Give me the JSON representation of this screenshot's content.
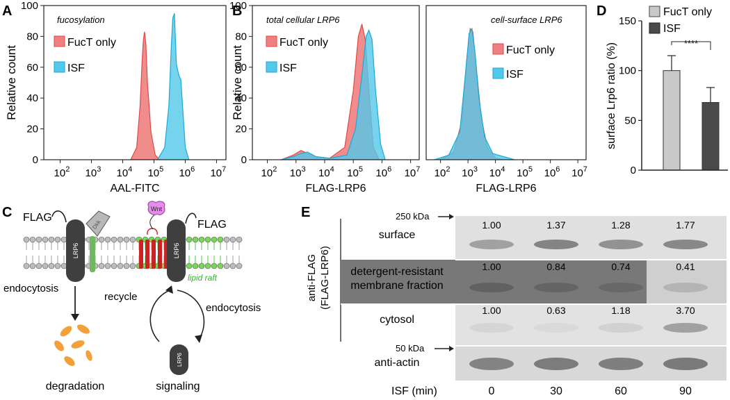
{
  "panel_labels": {
    "A": "A",
    "B": "B",
    "C": "C",
    "D": "D",
    "E": "E"
  },
  "colors": {
    "fuct": "#f08080",
    "fuct_edge": "#e04848",
    "isf": "#52c8ea",
    "isf_edge": "#1aa9d6",
    "overlap": "#4f8cae",
    "bar_fuct": "#c9c9c9",
    "bar_isf": "#4a4a4a",
    "protein": "#3f3f3f",
    "raft": "#2bb82b",
    "raft_head": "#7bd657",
    "red_tm": "#cc2222",
    "wnt": "#e58ee9",
    "degradation": "#f2a13a"
  },
  "panelA": {
    "annotation": "fucosylation",
    "ylabel": "Relative count",
    "xlabel": "AAL-FITC",
    "yticks": [
      "0",
      "20",
      "40",
      "60",
      "80",
      "100"
    ],
    "xticks": [
      {
        "base": "10",
        "exp": "2"
      },
      {
        "base": "10",
        "exp": "3"
      },
      {
        "base": "10",
        "exp": "4"
      },
      {
        "base": "10",
        "exp": "5"
      },
      {
        "base": "10",
        "exp": "6"
      },
      {
        "base": "10",
        "exp": "7"
      }
    ],
    "legend": [
      "FucT only",
      "ISF"
    ]
  },
  "panelB": {
    "left_annotation": "total cellular LRP6",
    "right_annotation": "cell-surface LRP6",
    "ylabel": "Relative count",
    "xlabel": "FLAG-LRP6",
    "yticks": [
      "0",
      "20",
      "40",
      "60",
      "80",
      "100"
    ],
    "xticks": [
      {
        "base": "10",
        "exp": "2"
      },
      {
        "base": "10",
        "exp": "3"
      },
      {
        "base": "10",
        "exp": "4"
      },
      {
        "base": "10",
        "exp": "5"
      },
      {
        "base": "10",
        "exp": "6"
      },
      {
        "base": "10",
        "exp": "7"
      }
    ],
    "legend": [
      "FucT only",
      "ISF"
    ]
  },
  "panelC": {
    "flag_left": "FLAG",
    "flag_right": "FLAG",
    "lrp6": "LRP6",
    "dkk": "Dkk",
    "wnt": "Wnt",
    "lipid_raft": "lipid raft",
    "endocytosis_left": "endocytosis",
    "endocytosis_right": "endocytosis",
    "recycle": "recycle",
    "degradation": "degradation",
    "signaling": "signaling"
  },
  "panelE": {
    "marker_250": "250 kDa",
    "marker_50": "50 kDa",
    "side_label_1": "anti-FLAG",
    "side_label_2": "(FLAG-LRP6)",
    "rows": [
      {
        "label_lines": [
          "surface"
        ],
        "values": [
          "1.00",
          "1.37",
          "1.28",
          "1.77"
        ]
      },
      {
        "label_lines": [
          "detergent-resistant",
          "membrane fraction"
        ],
        "values": [
          "1.00",
          "0.84",
          "0.74",
          "0.41"
        ]
      },
      {
        "label_lines": [
          "cytosol"
        ],
        "values": [
          "1.00",
          "0.63",
          "1.18",
          "3.70"
        ]
      },
      {
        "label_lines": [
          "anti-actin"
        ],
        "values": []
      }
    ],
    "isf_label": "ISF (min)",
    "time_points": [
      "0",
      "30",
      "60",
      "90"
    ]
  },
  "chart_data": [
    {
      "panel": "A",
      "type": "area",
      "annotation": "fucosylation",
      "xlabel": "AAL-FITC",
      "ylabel": "Relative count",
      "x_scale": "log10",
      "xlim": [
        30,
        20000000
      ],
      "ylim": [
        0,
        100
      ],
      "series": [
        {
          "name": "FucT only",
          "x": [
            18000,
            28000,
            36000,
            42000,
            46000,
            50000,
            55000,
            62000,
            80000,
            110000,
            150000
          ],
          "values": [
            0,
            8,
            35,
            65,
            78,
            83,
            75,
            50,
            18,
            3,
            0
          ]
        },
        {
          "name": "ISF",
          "x": [
            130000,
            220000,
            300000,
            360000,
            400000,
            450000,
            520000,
            620000,
            720000,
            850000,
            1000000,
            1300000
          ],
          "values": [
            0,
            8,
            35,
            75,
            92,
            95,
            62,
            55,
            52,
            30,
            8,
            0
          ]
        }
      ]
    },
    {
      "panel": "B-left",
      "type": "area",
      "annotation": "total cellular LRP6",
      "xlabel": "FLAG-LRP6",
      "ylabel": "Relative count",
      "x_scale": "log10",
      "xlim": [
        30,
        20000000
      ],
      "ylim": [
        0,
        100
      ],
      "series": [
        {
          "name": "FucT only",
          "x": [
            300,
            800,
            1500,
            2500,
            5000,
            15000,
            50000,
            100000,
            150000,
            200000,
            260000,
            350000,
            500000,
            800000
          ],
          "values": [
            0,
            3,
            6,
            4,
            2,
            1,
            8,
            45,
            80,
            88,
            78,
            45,
            8,
            0
          ]
        },
        {
          "name": "ISF",
          "x": [
            300,
            800,
            1500,
            2500,
            5000,
            15000,
            60000,
            120000,
            200000,
            280000,
            350000,
            450000,
            600000,
            900000,
            1300000
          ],
          "values": [
            0,
            2,
            4,
            5,
            2,
            1,
            3,
            20,
            55,
            80,
            84,
            78,
            45,
            10,
            0
          ]
        }
      ]
    },
    {
      "panel": "B-right",
      "type": "area",
      "annotation": "cell-surface LRP6",
      "xlabel": "FLAG-LRP6",
      "ylabel": "",
      "x_scale": "log10",
      "xlim": [
        30,
        20000000
      ],
      "ylim": [
        0,
        100
      ],
      "series": [
        {
          "name": "FucT only",
          "x": [
            100,
            300,
            600,
            900,
            1200,
            1500,
            2000,
            3000,
            5000,
            10000,
            20000
          ],
          "values": [
            0,
            5,
            25,
            65,
            85,
            83,
            60,
            28,
            8,
            1,
            0
          ]
        },
        {
          "name": "ISF",
          "x": [
            60,
            200,
            500,
            800,
            1100,
            1400,
            1800,
            2500,
            4000,
            8000,
            20000,
            50000
          ],
          "values": [
            0,
            3,
            18,
            55,
            82,
            85,
            70,
            40,
            15,
            4,
            2,
            0
          ]
        }
      ]
    },
    {
      "panel": "D",
      "type": "bar",
      "ylabel": "surface Lrp6 ratio (%)",
      "ylim": [
        0,
        150
      ],
      "yticks": [
        "0",
        "50",
        "100",
        "150"
      ],
      "categories": [
        "FucT only",
        "ISF"
      ],
      "values": [
        100,
        68
      ],
      "errors": [
        15,
        15
      ],
      "significance": "****",
      "legend": [
        "FucT only",
        "ISF"
      ]
    }
  ]
}
